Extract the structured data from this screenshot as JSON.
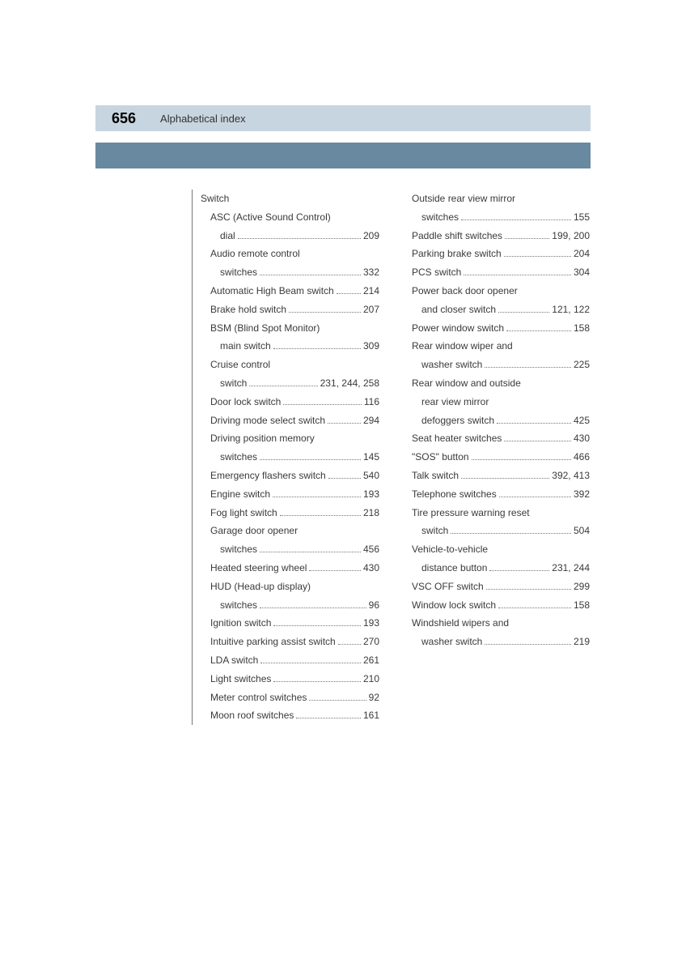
{
  "header": {
    "page_number": "656",
    "title": "Alphabetical index"
  },
  "colors": {
    "light_band": "#c7d5e0",
    "dark_band": "#6889a0",
    "text": "#3a3a3a"
  },
  "left_column": {
    "heading": "Switch",
    "entries": [
      {
        "type": "cont",
        "indent": 1,
        "text": "ASC (Active Sound Control)"
      },
      {
        "type": "leaf",
        "indent": 2,
        "label": "dial",
        "pages": "209"
      },
      {
        "type": "cont",
        "indent": 1,
        "text": "Audio remote control"
      },
      {
        "type": "leaf",
        "indent": 2,
        "label": "switches",
        "pages": "332"
      },
      {
        "type": "leaf",
        "indent": 1,
        "label": "Automatic High Beam switch",
        "pages": "214"
      },
      {
        "type": "leaf",
        "indent": 1,
        "label": "Brake hold switch",
        "pages": "207"
      },
      {
        "type": "cont",
        "indent": 1,
        "text": "BSM (Blind Spot Monitor)"
      },
      {
        "type": "leaf",
        "indent": 2,
        "label": "main switch",
        "pages": "309"
      },
      {
        "type": "cont",
        "indent": 1,
        "text": "Cruise control"
      },
      {
        "type": "leaf",
        "indent": 2,
        "label": "switch",
        "pages": "231, 244, 258"
      },
      {
        "type": "leaf",
        "indent": 1,
        "label": "Door lock switch",
        "pages": "116"
      },
      {
        "type": "leaf",
        "indent": 1,
        "label": "Driving mode select switch",
        "pages": "294"
      },
      {
        "type": "cont",
        "indent": 1,
        "text": "Driving position memory"
      },
      {
        "type": "leaf",
        "indent": 2,
        "label": "switches",
        "pages": "145"
      },
      {
        "type": "leaf",
        "indent": 1,
        "label": "Emergency flashers switch",
        "pages": "540"
      },
      {
        "type": "leaf",
        "indent": 1,
        "label": "Engine switch",
        "pages": "193"
      },
      {
        "type": "leaf",
        "indent": 1,
        "label": "Fog light switch",
        "pages": "218"
      },
      {
        "type": "cont",
        "indent": 1,
        "text": "Garage door opener"
      },
      {
        "type": "leaf",
        "indent": 2,
        "label": "switches",
        "pages": "456"
      },
      {
        "type": "leaf",
        "indent": 1,
        "label": "Heated steering wheel",
        "pages": "430"
      },
      {
        "type": "cont",
        "indent": 1,
        "text": "HUD (Head-up display)"
      },
      {
        "type": "leaf",
        "indent": 2,
        "label": "switches",
        "pages": "96"
      },
      {
        "type": "leaf",
        "indent": 1,
        "label": "Ignition switch",
        "pages": "193"
      },
      {
        "type": "leaf",
        "indent": 1,
        "label": "Intuitive parking assist switch",
        "pages": "270"
      },
      {
        "type": "leaf",
        "indent": 1,
        "label": "LDA switch",
        "pages": "261"
      },
      {
        "type": "leaf",
        "indent": 1,
        "label": "Light switches",
        "pages": "210"
      },
      {
        "type": "leaf",
        "indent": 1,
        "label": "Meter control switches",
        "pages": "92"
      },
      {
        "type": "leaf",
        "indent": 1,
        "label": "Moon roof switches",
        "pages": "161"
      }
    ]
  },
  "right_column": {
    "entries": [
      {
        "type": "cont",
        "indent": 1,
        "text": "Outside rear view mirror"
      },
      {
        "type": "leaf",
        "indent": 2,
        "label": "switches",
        "pages": "155"
      },
      {
        "type": "leaf",
        "indent": 1,
        "label": "Paddle shift switches",
        "pages": "199, 200"
      },
      {
        "type": "leaf",
        "indent": 1,
        "label": "Parking brake switch",
        "pages": "204"
      },
      {
        "type": "leaf",
        "indent": 1,
        "label": "PCS switch",
        "pages": "304"
      },
      {
        "type": "cont",
        "indent": 1,
        "text": "Power back door opener"
      },
      {
        "type": "leaf",
        "indent": 2,
        "label": "and closer switch",
        "pages": "121, 122"
      },
      {
        "type": "leaf",
        "indent": 1,
        "label": "Power window switch",
        "pages": "158"
      },
      {
        "type": "cont",
        "indent": 1,
        "text": "Rear window wiper and"
      },
      {
        "type": "leaf",
        "indent": 2,
        "label": "washer switch",
        "pages": "225"
      },
      {
        "type": "cont",
        "indent": 1,
        "text": "Rear window and outside"
      },
      {
        "type": "cont",
        "indent": 2,
        "text": "rear view mirror"
      },
      {
        "type": "leaf",
        "indent": 2,
        "label": "defoggers switch",
        "pages": "425"
      },
      {
        "type": "leaf",
        "indent": 1,
        "label": "Seat heater switches",
        "pages": "430"
      },
      {
        "type": "leaf",
        "indent": 1,
        "label": "\"SOS\" button",
        "pages": "466"
      },
      {
        "type": "leaf",
        "indent": 1,
        "label": "Talk switch",
        "pages": "392, 413"
      },
      {
        "type": "leaf",
        "indent": 1,
        "label": "Telephone switches",
        "pages": "392"
      },
      {
        "type": "cont",
        "indent": 1,
        "text": "Tire pressure warning reset"
      },
      {
        "type": "leaf",
        "indent": 2,
        "label": "switch",
        "pages": "504"
      },
      {
        "type": "cont",
        "indent": 1,
        "text": "Vehicle-to-vehicle"
      },
      {
        "type": "leaf",
        "indent": 2,
        "label": "distance button",
        "pages": "231, 244"
      },
      {
        "type": "leaf",
        "indent": 1,
        "label": "VSC OFF switch",
        "pages": "299"
      },
      {
        "type": "leaf",
        "indent": 1,
        "label": "Window lock switch",
        "pages": "158"
      },
      {
        "type": "cont",
        "indent": 1,
        "text": "Windshield wipers and"
      },
      {
        "type": "leaf",
        "indent": 2,
        "label": "washer switch",
        "pages": "219"
      }
    ]
  }
}
